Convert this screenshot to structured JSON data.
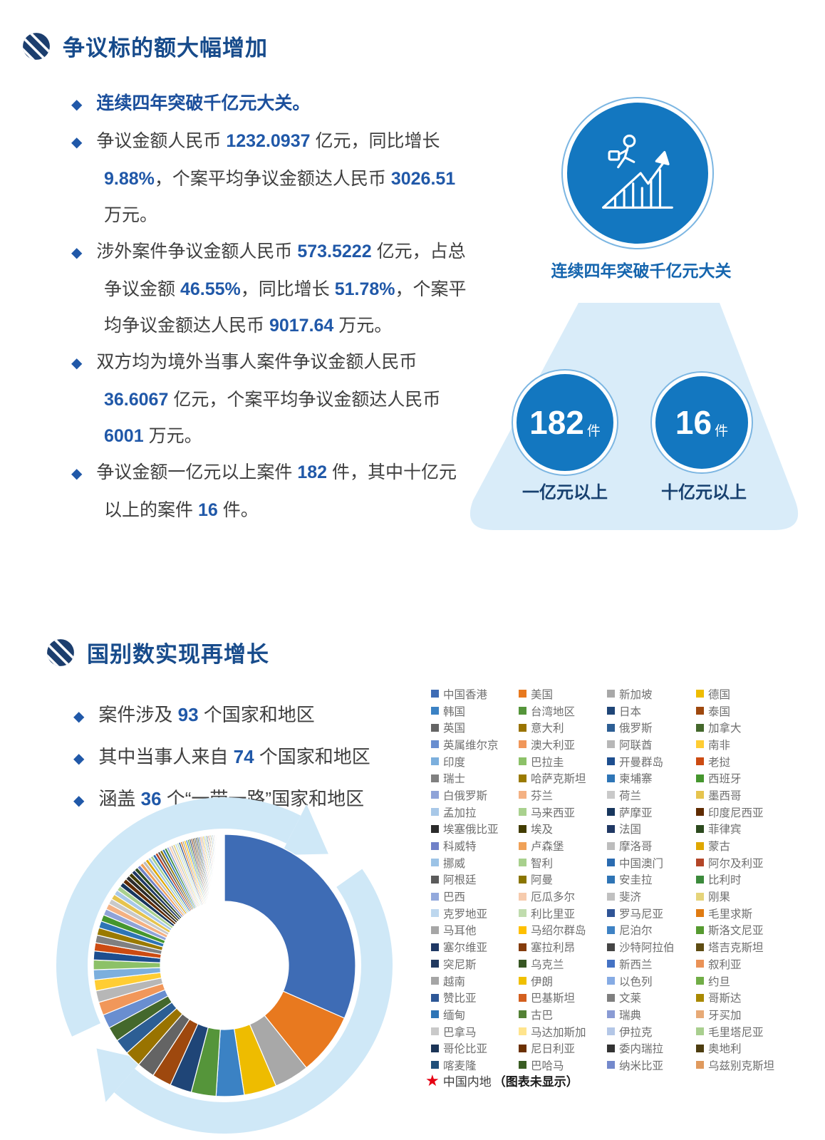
{
  "colors": {
    "accent_blue": "#2058a8",
    "title_blue": "#174b8b",
    "lead_blue": "#1b4f9c",
    "circle_blue": "#1377c0",
    "ring_blue": "#7cb6e2",
    "beam_blue": "#d9ecf9",
    "arrow_ring_blue": "#cfe8f7",
    "label_navy": "#17406f",
    "text_dark": "#3f3f3f",
    "star_red": "#e60012"
  },
  "icons": {
    "section_logo": "striped-circle-logo-icon",
    "growth": "person-climbing-growth-chart-icon",
    "bullet": "diamond-bullet-icon",
    "star": "red-star-icon"
  },
  "section1": {
    "title": "争议标的额大幅增加",
    "bullets": [
      {
        "lead": true,
        "segments": [
          {
            "t": "连续四年突破千亿元大关。"
          }
        ]
      },
      {
        "segments": [
          {
            "t": "争议金额人民币 "
          },
          {
            "t": "1232.0937",
            "s": "n"
          },
          {
            "t": " 亿元，同比增长 "
          },
          {
            "t": "9.88%",
            "s": "n"
          },
          {
            "t": "，个案平均争议金额达人民币 "
          },
          {
            "t": "3026.51",
            "s": "n"
          },
          {
            "t": " 万元。"
          }
        ]
      },
      {
        "segments": [
          {
            "t": "涉外案件争议金额人民币 "
          },
          {
            "t": "573.5222",
            "s": "n"
          },
          {
            "t": " 亿元，占总争议金额 "
          },
          {
            "t": "46.55%",
            "s": "n"
          },
          {
            "t": "，同比增长 "
          },
          {
            "t": "51.78%",
            "s": "n"
          },
          {
            "t": "，个案平均争议金额达人民币 "
          },
          {
            "t": "9017.64",
            "s": "n"
          },
          {
            "t": " 万元。"
          }
        ]
      },
      {
        "segments": [
          {
            "t": "双方均为境外当事人案件争议金额人民币 "
          },
          {
            "t": "36.6067",
            "s": "n"
          },
          {
            "t": " 亿元，个案平均争议金额达人民币 "
          },
          {
            "t": "6001",
            "s": "n"
          },
          {
            "t": " 万元。"
          }
        ]
      },
      {
        "segments": [
          {
            "t": "争议金额一亿元以上案件 "
          },
          {
            "t": "182",
            "s": "n"
          },
          {
            "t": " 件，其中十亿元以上的案件 "
          },
          {
            "t": "16",
            "s": "n"
          },
          {
            "t": " 件。"
          }
        ]
      }
    ],
    "infographic": {
      "caption": "连续四年突破千亿元大关",
      "stats": [
        {
          "value": "182",
          "unit": "件",
          "label": "一亿元以上"
        },
        {
          "value": "16",
          "unit": "件",
          "label": "十亿元以上"
        }
      ]
    }
  },
  "section2": {
    "title": "国别数实现再增长",
    "bullets": [
      {
        "segments": [
          {
            "t": "案件涉及 "
          },
          {
            "t": "93",
            "s": "n"
          },
          {
            "t": " 个国家和地区"
          }
        ]
      },
      {
        "segments": [
          {
            "t": "其中当事人来自 "
          },
          {
            "t": "74",
            "s": "n"
          },
          {
            "t": " 个国家和地区"
          }
        ]
      },
      {
        "segments": [
          {
            "t": "涵盖 "
          },
          {
            "t": "36",
            "s": "n"
          },
          {
            "t": " 个“一带一路”国家和地区"
          }
        ]
      }
    ]
  },
  "chart_data": {
    "type": "pie",
    "variant": "donut",
    "legend_position": "right",
    "legend_columns": 4,
    "footnote_star": "中国内地",
    "footnote_rest": "（图表未显示）",
    "series": [
      {
        "name": "中国香港",
        "color": "#3e6cb5",
        "value": 33
      },
      {
        "name": "美国",
        "color": "#e8791f",
        "value": 8
      },
      {
        "name": "新加坡",
        "color": "#a8a8a8",
        "value": 4.5
      },
      {
        "name": "德国",
        "color": "#eebc00",
        "value": 4.2
      },
      {
        "name": "韩国",
        "color": "#3b82c4",
        "value": 3.6
      },
      {
        "name": "台湾地区",
        "color": "#55953a",
        "value": 3.2
      },
      {
        "name": "日本",
        "color": "#1f4577",
        "value": 2.8
      },
      {
        "name": "泰国",
        "color": "#9e480e",
        "value": 2.5
      },
      {
        "name": "英国",
        "color": "#646464",
        "value": 2.3
      },
      {
        "name": "意大利",
        "color": "#997300",
        "value": 2.1
      },
      {
        "name": "俄罗斯",
        "color": "#2c5e94",
        "value": 2.0
      },
      {
        "name": "加拿大",
        "color": "#44682c",
        "value": 1.9
      },
      {
        "name": "英属维尔京",
        "color": "#698ed0",
        "value": 1.8
      },
      {
        "name": "澳大利亚",
        "color": "#f1975a",
        "value": 1.7
      },
      {
        "name": "阿联酋",
        "color": "#b7b7b7",
        "value": 1.5
      },
      {
        "name": "南非",
        "color": "#ffcd33",
        "value": 1.4
      },
      {
        "name": "印度",
        "color": "#7cafdd",
        "value": 1.3
      },
      {
        "name": "巴拉圭",
        "color": "#8cc168",
        "value": 1.25
      },
      {
        "name": "开曼群岛",
        "color": "#1d4e8f",
        "value": 1.15
      },
      {
        "name": "老挝",
        "color": "#cc4b12",
        "value": 1.05
      },
      {
        "name": "瑞士",
        "color": "#808080",
        "value": 1.0
      },
      {
        "name": "哈萨克斯坦",
        "color": "#9a7a00",
        "value": 0.95
      },
      {
        "name": "柬埔寨",
        "color": "#2e75b6",
        "value": 0.9
      },
      {
        "name": "西班牙",
        "color": "#45962e",
        "value": 0.85
      },
      {
        "name": "白俄罗斯",
        "color": "#8fa3d8",
        "value": 0.8
      },
      {
        "name": "芬兰",
        "color": "#f4b183",
        "value": 0.75
      },
      {
        "name": "荷兰",
        "color": "#c9c9c9",
        "value": 0.7
      },
      {
        "name": "墨西哥",
        "color": "#e6c44e",
        "value": 0.68
      },
      {
        "name": "孟加拉",
        "color": "#a8c8e8",
        "value": 0.65
      },
      {
        "name": "马来西亚",
        "color": "#a9d18e",
        "value": 0.62
      },
      {
        "name": "萨摩亚",
        "color": "#17365d",
        "value": 0.6
      },
      {
        "name": "印度尼西亚",
        "color": "#5f2b00",
        "value": 0.58
      },
      {
        "name": "埃塞俄比亚",
        "color": "#2b2b2b",
        "value": 0.55
      },
      {
        "name": "埃及",
        "color": "#423c00",
        "value": 0.52
      },
      {
        "name": "法国",
        "color": "#203864",
        "value": 0.5
      },
      {
        "name": "菲律宾",
        "color": "#2c4a1e",
        "value": 0.48
      },
      {
        "name": "科威特",
        "color": "#7081c8",
        "value": 0.46
      },
      {
        "name": "卢森堡",
        "color": "#f0a158",
        "value": 0.44
      },
      {
        "name": "摩洛哥",
        "color": "#bdbdbd",
        "value": 0.42
      },
      {
        "name": "蒙古",
        "color": "#dfa700",
        "value": 0.4
      },
      {
        "name": "挪威",
        "color": "#9cc3e6",
        "value": 0.38
      },
      {
        "name": "智利",
        "color": "#a8d08d",
        "value": 0.37
      },
      {
        "name": "中国澳门",
        "color": "#2a6bb0",
        "value": 0.36
      },
      {
        "name": "阿尔及利亚",
        "color": "#b34527",
        "value": 0.35
      },
      {
        "name": "阿根廷",
        "color": "#5b5b5b",
        "value": 0.34
      },
      {
        "name": "阿曼",
        "color": "#8a7500",
        "value": 0.33
      },
      {
        "name": "安圭拉",
        "color": "#2e74b5",
        "value": 0.32
      },
      {
        "name": "比利时",
        "color": "#3b8a3b",
        "value": 0.31
      },
      {
        "name": "巴西",
        "color": "#93a9dc",
        "value": 0.3
      },
      {
        "name": "厄瓜多尔",
        "color": "#f6cbad",
        "value": 0.29
      },
      {
        "name": "斐济",
        "color": "#c0c0c0",
        "value": 0.28
      },
      {
        "name": "刚果",
        "color": "#e5d47a",
        "value": 0.27
      },
      {
        "name": "克罗地亚",
        "color": "#bdd7ee",
        "value": 0.26
      },
      {
        "name": "利比里亚",
        "color": "#c0dcae",
        "value": 0.25
      },
      {
        "name": "罗马尼亚",
        "color": "#2f5496",
        "value": 0.25
      },
      {
        "name": "毛里求斯",
        "color": "#e07b12",
        "value": 0.24
      },
      {
        "name": "马耳他",
        "color": "#a6a6a6",
        "value": 0.24
      },
      {
        "name": "马绍尔群岛",
        "color": "#ffc000",
        "value": 0.23
      },
      {
        "name": "尼泊尔",
        "color": "#3e82c4",
        "value": 0.23
      },
      {
        "name": "斯洛文尼亚",
        "color": "#569a30",
        "value": 0.22
      },
      {
        "name": "塞尔维亚",
        "color": "#1f3864",
        "value": 0.22
      },
      {
        "name": "塞拉利昂",
        "color": "#843c0c",
        "value": 0.21
      },
      {
        "name": "沙特阿拉伯",
        "color": "#454545",
        "value": 0.21
      },
      {
        "name": "塔吉克斯坦",
        "color": "#5e4c12",
        "value": 0.2
      },
      {
        "name": "突尼斯",
        "color": "#21395f",
        "value": 0.2
      },
      {
        "name": "乌克兰",
        "color": "#375623",
        "value": 0.19
      },
      {
        "name": "新西兰",
        "color": "#4472c4",
        "value": 0.19
      },
      {
        "name": "叙利亚",
        "color": "#ea9257",
        "value": 0.18
      },
      {
        "name": "越南",
        "color": "#a5a5a5",
        "value": 0.18
      },
      {
        "name": "伊朗",
        "color": "#f0c000",
        "value": 0.17
      },
      {
        "name": "以色列",
        "color": "#86abe4",
        "value": 0.17
      },
      {
        "name": "约旦",
        "color": "#71ad47",
        "value": 0.16
      },
      {
        "name": "赞比亚",
        "color": "#2d5796",
        "value": 0.16
      },
      {
        "name": "巴基斯坦",
        "color": "#d35f1e",
        "value": 0.15
      },
      {
        "name": "文莱",
        "color": "#7f7f7f",
        "value": 0.15
      },
      {
        "name": "哥斯达",
        "color": "#a98900",
        "value": 0.14
      },
      {
        "name": "缅甸",
        "color": "#2e75b6",
        "value": 0.14
      },
      {
        "name": "古巴",
        "color": "#538135",
        "value": 0.13
      },
      {
        "name": "瑞典",
        "color": "#8a9bd4",
        "value": 0.13
      },
      {
        "name": "牙买加",
        "color": "#e7aa77",
        "value": 0.12
      },
      {
        "name": "巴拿马",
        "color": "#c9c9c9",
        "value": 0.12
      },
      {
        "name": "马达加斯加",
        "color": "#ffe48d",
        "value": 0.11
      },
      {
        "name": "伊拉克",
        "color": "#b4c7e7",
        "value": 0.11
      },
      {
        "name": "毛里塔尼亚",
        "color": "#a9cf8f",
        "value": 0.1
      },
      {
        "name": "哥伦比亚",
        "color": "#1c3557",
        "value": 0.1
      },
      {
        "name": "尼日利亚",
        "color": "#6b3000",
        "value": 0.1
      },
      {
        "name": "委内瑞拉",
        "color": "#333333",
        "value": 0.09
      },
      {
        "name": "奥地利",
        "color": "#4d3d10",
        "value": 0.09
      },
      {
        "name": "喀麦隆",
        "color": "#1f4e79",
        "value": 0.09
      },
      {
        "name": "巴哈马",
        "color": "#3a5d23",
        "value": 0.08
      },
      {
        "name": "纳米比亚",
        "color": "#7489cc",
        "value": 0.08
      },
      {
        "name": "乌兹别克斯坦",
        "color": "#e09a5e",
        "value": 0.08
      }
    ]
  }
}
